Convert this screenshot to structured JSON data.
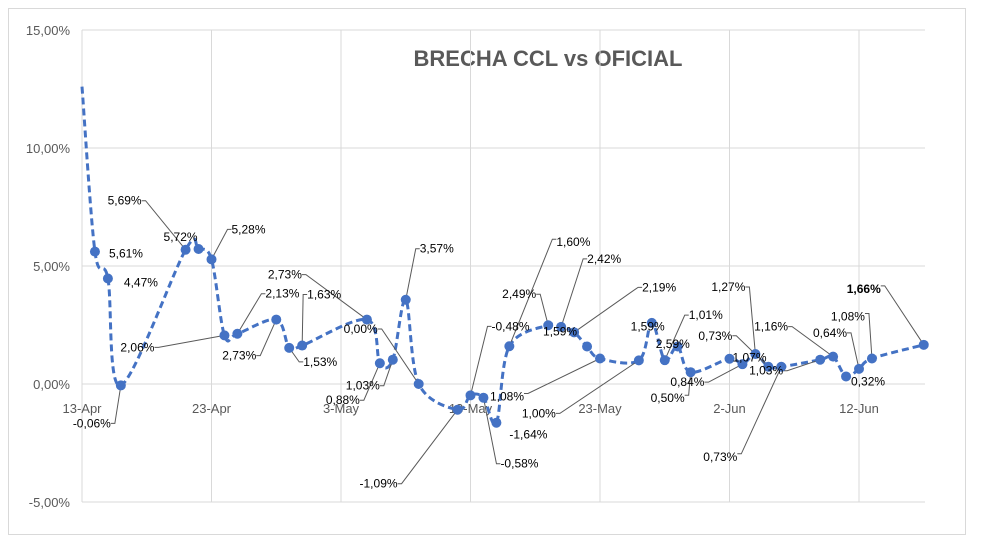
{
  "chart_data": {
    "type": "line",
    "title": "BRECHA CCL vs OFICIAL",
    "xlabel": "",
    "ylabel": "",
    "ylim": [
      -5,
      15
    ],
    "y_ticks": [
      "15,00%",
      "10,00%",
      "5,00%",
      "0,00%",
      "-5,00%"
    ],
    "y_tick_values": [
      15,
      10,
      5,
      0,
      -5
    ],
    "x_ticks": [
      "13-Apr",
      "23-Apr",
      "3-May",
      "13-May",
      "23-May",
      "2-Jun",
      "12-Jun"
    ],
    "x_tick_days": [
      0,
      10,
      20,
      30,
      40,
      50,
      60
    ],
    "series": [
      {
        "name": "Brecha",
        "color": "#4472c4",
        "points": [
          {
            "day": 0,
            "value": 12.6
          },
          {
            "day": 1,
            "value": 5.61
          },
          {
            "day": 2,
            "value": 4.47
          },
          {
            "day": 3,
            "value": -0.06
          },
          {
            "day": 8,
            "value": 5.69
          },
          {
            "day": 9,
            "value": 5.72
          },
          {
            "day": 10,
            "value": 5.28
          },
          {
            "day": 11,
            "value": 2.06
          },
          {
            "day": 12,
            "value": 2.13
          },
          {
            "day": 15,
            "value": 2.73
          },
          {
            "day": 16,
            "value": 1.53
          },
          {
            "day": 17,
            "value": 1.63
          },
          {
            "day": 22,
            "value": 2.73
          },
          {
            "day": 23,
            "value": 0.88
          },
          {
            "day": 24,
            "value": 1.03
          },
          {
            "day": 25,
            "value": 3.57
          },
          {
            "day": 26,
            "value": 0.0
          },
          {
            "day": 29,
            "value": -1.09
          },
          {
            "day": 30,
            "value": -0.48
          },
          {
            "day": 31,
            "value": -0.58
          },
          {
            "day": 32,
            "value": -1.64
          },
          {
            "day": 33,
            "value": 1.6
          },
          {
            "day": 36,
            "value": 2.49
          },
          {
            "day": 37,
            "value": 2.42
          },
          {
            "day": 38,
            "value": 2.19
          },
          {
            "day": 39,
            "value": 1.59
          },
          {
            "day": 40,
            "value": 1.08
          },
          {
            "day": 43,
            "value": 1.0
          },
          {
            "day": 44,
            "value": 2.59
          },
          {
            "day": 45,
            "value": 1.01
          },
          {
            "day": 46,
            "value": 1.59
          },
          {
            "day": 47,
            "value": 0.5
          },
          {
            "day": 50,
            "value": 1.07
          },
          {
            "day": 51,
            "value": 0.84
          },
          {
            "day": 52,
            "value": 1.27
          },
          {
            "day": 53,
            "value": 0.73
          },
          {
            "day": 54,
            "value": 0.73
          },
          {
            "day": 57,
            "value": 1.03
          },
          {
            "day": 58,
            "value": 1.16
          },
          {
            "day": 59,
            "value": 0.32
          },
          {
            "day": 60,
            "value": 0.64
          },
          {
            "day": 61,
            "value": 1.08
          },
          {
            "day": 65,
            "value": 1.66
          }
        ]
      }
    ],
    "data_labels": [
      {
        "text": "5,61%",
        "day": 1,
        "value": 5.61,
        "big": false
      },
      {
        "text": "4,47%",
        "day": 2,
        "value": 4.47,
        "big": false
      },
      {
        "text": "-0,06%",
        "day": 3,
        "value": -0.06,
        "big": false
      },
      {
        "text": "5,69%",
        "day": 8,
        "value": 5.69,
        "big": false
      },
      {
        "text": "5,72%",
        "day": 9,
        "value": 5.72,
        "big": false
      },
      {
        "text": "5,28%",
        "day": 10,
        "value": 5.28,
        "big": false
      },
      {
        "text": "2,06%",
        "day": 11,
        "value": 2.06,
        "big": false
      },
      {
        "text": "2,13%",
        "day": 12,
        "value": 2.13,
        "big": false
      },
      {
        "text": "2,73%",
        "day": 15,
        "value": 2.73,
        "big": false
      },
      {
        "text": "1,53%",
        "day": 16,
        "value": 1.53,
        "big": false
      },
      {
        "text": "1,63%",
        "day": 17,
        "value": 1.63,
        "big": false
      },
      {
        "text": "2,73%",
        "day": 22,
        "value": 2.73,
        "big": false
      },
      {
        "text": "0,88%",
        "day": 23,
        "value": 0.88,
        "big": false
      },
      {
        "text": "1,03%",
        "day": 24,
        "value": 1.03,
        "big": false
      },
      {
        "text": "0,00%",
        "day": 26,
        "value": 0.0,
        "big": false
      },
      {
        "text": "3,57%",
        "day": 25,
        "value": 3.57,
        "big": false
      },
      {
        "text": "-1,09%",
        "day": 29,
        "value": -1.09,
        "big": false
      },
      {
        "text": "-0,48%",
        "day": 30,
        "value": -0.48,
        "big": false
      },
      {
        "text": "-0,58%",
        "day": 31,
        "value": -0.58,
        "big": false
      },
      {
        "text": "-1,64%",
        "day": 32,
        "value": -1.64,
        "big": false
      },
      {
        "text": "1,60%",
        "day": 33,
        "value": 1.6,
        "big": true
      },
      {
        "text": "2,42%",
        "day": 37,
        "value": 2.42,
        "big": false
      },
      {
        "text": "2,49%",
        "day": 36,
        "value": 2.49,
        "big": false
      },
      {
        "text": "2,19%",
        "day": 38,
        "value": 2.19,
        "big": false
      },
      {
        "text": "1,59%",
        "day": 39,
        "value": 1.59,
        "big": false
      },
      {
        "text": "1,08%",
        "day": 40,
        "value": 1.08,
        "big": true
      },
      {
        "text": "1,00%",
        "day": 43,
        "value": 1.0,
        "big": false
      },
      {
        "text": "2,59%",
        "day": 44,
        "value": 2.59,
        "big": false
      },
      {
        "text": "1,01%",
        "day": 45,
        "value": 1.01,
        "big": false
      },
      {
        "text": "1,59%",
        "day": 46,
        "value": 1.59,
        "big": false
      },
      {
        "text": "0,50%",
        "day": 47,
        "value": 0.5,
        "big": true
      },
      {
        "text": "1,07%",
        "day": 50,
        "value": 1.07,
        "big": false
      },
      {
        "text": "0,84%",
        "day": 51,
        "value": 0.84,
        "big": false
      },
      {
        "text": "1,27%",
        "day": 52,
        "value": 1.27,
        "big": false
      },
      {
        "text": "0,73%",
        "day": 53,
        "value": 0.73,
        "big": false
      },
      {
        "text": "0,73%",
        "day": 54,
        "value": 0.73,
        "big": true
      },
      {
        "text": "1,03%",
        "day": 57,
        "value": 1.03,
        "big": false
      },
      {
        "text": "1,16%",
        "day": 58,
        "value": 1.16,
        "big": false
      },
      {
        "text": "0,32%",
        "day": 59,
        "value": 0.32,
        "big": false
      },
      {
        "text": "0,64%",
        "day": 60,
        "value": 0.64,
        "big": false
      },
      {
        "text": "1,08%",
        "day": 61,
        "value": 1.08,
        "big": true
      },
      {
        "text": "1,66%",
        "day": 65,
        "value": 1.66,
        "big": true
      }
    ]
  }
}
